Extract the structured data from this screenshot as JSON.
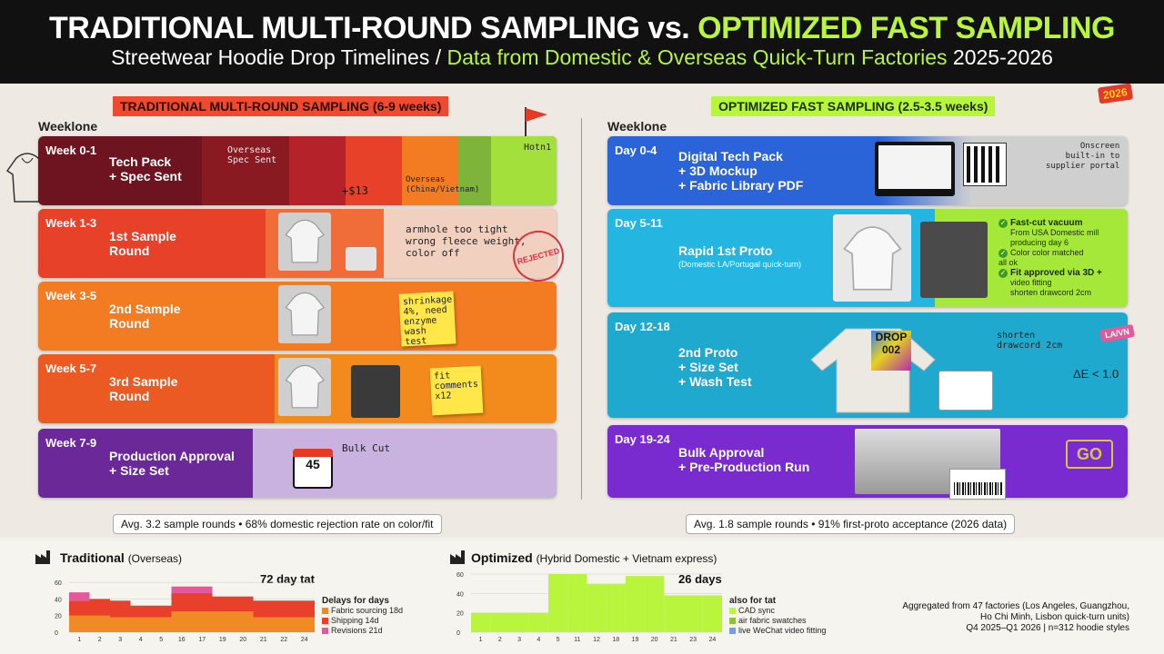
{
  "header": {
    "title_a": "TRADITIONAL MULTI-ROUND SAMPLING vs.",
    "title_b": "OPTIMIZED FAST SAMPLING",
    "subtitle_a": "Streetwear Hoodie Drop Timelines /",
    "subtitle_b": "Data from Domestic & Overseas Quick-Turn Factories",
    "subtitle_c": "2025-2026"
  },
  "year_tag": "2026",
  "traditional": {
    "section_title": "TRADITIONAL MULTI-ROUND SAMPLING (6-9 weeks)",
    "timeline_label": "Weeklone",
    "rows": [
      {
        "week": "Week 0-1",
        "label": "Tech Pack\n+ Spec Sent"
      },
      {
        "week": "Week 1-3",
        "label": "1st Sample\nRound"
      },
      {
        "week": "Week 3-5",
        "label": "2nd Sample\nRound"
      },
      {
        "week": "Week 5-7",
        "label": "3rd Sample\nRound"
      },
      {
        "week": "Week 7-9",
        "label": "Production Approval\n+ Size Set"
      }
    ],
    "notes": {
      "overseas_spec": "Overseas\nSpec Sent",
      "overseas_region": "Overseas\n(China/Vietnam)",
      "cost": "+$13",
      "hotn": "Hotn1",
      "armhole": "armhole too tight\nwrong fleece weight,\ncolor off",
      "stamp": "REJECTED",
      "shrinkage": "shrinkage\n4%, need\nenzyme\nwash test",
      "fit_comments": "fit\ncomments\nx12",
      "bulk_cut": "Bulk Cut",
      "calendar": "45"
    },
    "summary": "Avg. 3.2 sample rounds • 68% domestic rejection rate on color/fit"
  },
  "optimized": {
    "section_title": "OPTIMIZED FAST SAMPLING (2.5-3.5 weeks)",
    "timeline_label": "Weeklone",
    "rows": [
      {
        "week": "Day 0-4",
        "label": "Digital Tech Pack\n+ 3D Mockup\n+ Fabric Library PDF"
      },
      {
        "week": "Day 5-11",
        "label": "Rapid 1st Proto",
        "sub": "(Domestic LA/Portugal quick-turn)"
      },
      {
        "week": "Day 12-18",
        "label": "2nd Proto\n+ Size Set\n+ Wash Test"
      },
      {
        "week": "Day 19-24",
        "label": "Bulk Approval\n+ Pre-Production Run"
      }
    ],
    "notes": {
      "portal": "Onscreen\nbuilt-in to\nsupplier portal",
      "checks": [
        {
          "title": "Fast-cut vacuum",
          "detail": "From USA Domestic mill\nproducing day 6"
        },
        {
          "title": "",
          "detail": "Color color matched\nall ok"
        },
        {
          "title": "Fit approved via 3D +",
          "detail": "video fitting\nshorten drawcord 2cm"
        }
      ],
      "drawcord": "shorten\ndrawcord 2cm",
      "delta_e": "ΔE < 1.0",
      "drop_print": "DROP\n002",
      "tag_pink": "LA/VN",
      "go": "GO"
    },
    "summary": "Avg. 1.8 sample rounds • 91% first-proto acceptance (2026 data)"
  },
  "charts": {
    "traditional": {
      "title": "Traditional",
      "title_thin": "(Overseas)",
      "total": "72 day tat",
      "y_ticks": [
        "60",
        "40",
        "20",
        "0"
      ],
      "x_ticks": [
        "1",
        "2",
        "3",
        "4",
        "5",
        "16",
        "17",
        "19",
        "20",
        "21",
        "22",
        "24"
      ],
      "legend_title": "Delays for days",
      "legend": [
        {
          "label": "Fabric sourcing 18d",
          "color": "#f08a24"
        },
        {
          "label": "Shipping 14d",
          "color": "#e8402a"
        },
        {
          "label": "Revisions 21d",
          "color": "#e25a9a"
        }
      ]
    },
    "optimized": {
      "title": "Optimized",
      "title_thin": "(Hybrid Domestic + Vietnam express)",
      "total": "26 days",
      "y_ticks": [
        "60",
        "40",
        "20",
        "0"
      ],
      "x_ticks": [
        "1",
        "2",
        "3",
        "4",
        "5",
        "11",
        "12",
        "18",
        "19",
        "20",
        "21",
        "23",
        "24"
      ],
      "legend_title": "also for tat",
      "legend": [
        {
          "label": "CAD sync",
          "color": "#b8f53c"
        },
        {
          "label": "air fabric swatches",
          "color": "#8fc03a"
        },
        {
          "label": "live WeChat video fitting",
          "color": "#7a9de0"
        }
      ]
    }
  },
  "aggregate": {
    "line1": "Aggregated from 47 factories (Los Angeles, Guangzhou,",
    "line2": "Ho Chi Minh, Lisbon quick-turn units)",
    "line3": "Q4 2025–Q1 2026 | n=312 hoodie styles"
  },
  "chart_data": [
    {
      "type": "bar",
      "title": "Traditional (Overseas)",
      "categories": [
        "1",
        "2",
        "3",
        "4",
        "5",
        "16",
        "17",
        "19",
        "20",
        "21",
        "22",
        "24"
      ],
      "series": [
        {
          "name": "Fabric sourcing 18d",
          "values": [
            20,
            20,
            18,
            18,
            18,
            25,
            25,
            25,
            25,
            18,
            18,
            18
          ]
        },
        {
          "name": "Shipping 14d",
          "values": [
            18,
            20,
            20,
            14,
            14,
            22,
            22,
            18,
            18,
            20,
            20,
            20
          ]
        },
        {
          "name": "Revisions 21d",
          "values": [
            10,
            0,
            0,
            0,
            0,
            8,
            8,
            0,
            0,
            0,
            0,
            0
          ]
        }
      ],
      "ylim": [
        0,
        70
      ]
    },
    {
      "type": "bar",
      "title": "Optimized (Hybrid Domestic + Vietnam express)",
      "categories": [
        "1",
        "2",
        "3",
        "4",
        "5",
        "11",
        "12",
        "18",
        "19",
        "20",
        "21",
        "23",
        "24"
      ],
      "series": [
        {
          "name": "CAD sync",
          "values": [
            20,
            20,
            20,
            20,
            60,
            60,
            50,
            50,
            58,
            58,
            38,
            38,
            38
          ]
        }
      ],
      "ylim": [
        0,
        60
      ]
    }
  ]
}
